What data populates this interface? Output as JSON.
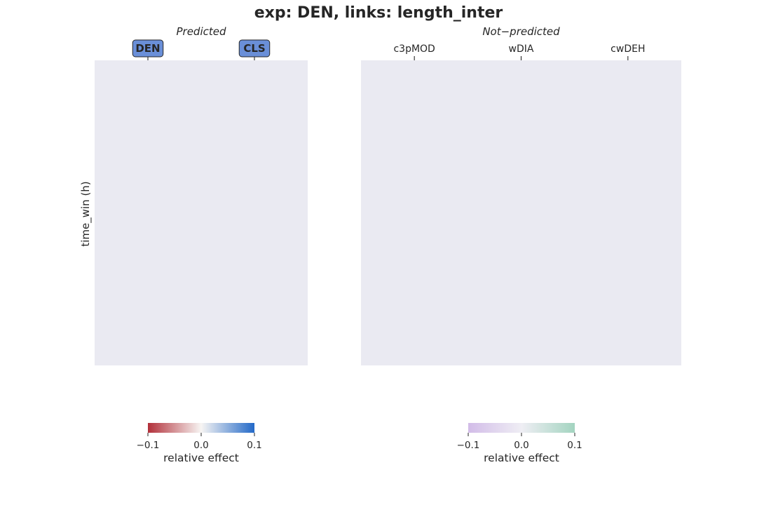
{
  "chart_data": {
    "type": "heatmap",
    "title": "exp: DEN, links: length_inter",
    "ylabel": "time_win (h)",
    "panels": [
      {
        "subtitle": "Predicted",
        "columns": [
          "DEN",
          "CLS"
        ],
        "columns_boxed": true,
        "box_color": "#6a8fd8",
        "cell_color": "#eaeaf2",
        "values": [],
        "colorbar": {
          "label": "relative effect",
          "range": [
            -0.1,
            0.1
          ],
          "ticks": [
            -0.1,
            0.0,
            0.1
          ],
          "tick_labels": [
            "−0.1",
            "0.0",
            "0.1"
          ],
          "colors": [
            "#b2303a",
            "#f7f5f3",
            "#2369c8"
          ]
        }
      },
      {
        "subtitle": "Not−predicted",
        "columns": [
          "c3pMOD",
          "wDIA",
          "cwDEH"
        ],
        "columns_boxed": false,
        "cell_color": "#eaeaf2",
        "values": [],
        "colorbar": {
          "label": "relative effect",
          "range": [
            -0.1,
            0.1
          ],
          "ticks": [
            -0.1,
            0.0,
            0.1
          ],
          "tick_labels": [
            "−0.1",
            "0.0",
            "0.1"
          ],
          "colors": [
            "#d2bce8",
            "#efeef4",
            "#a3d4c0"
          ]
        }
      }
    ]
  }
}
